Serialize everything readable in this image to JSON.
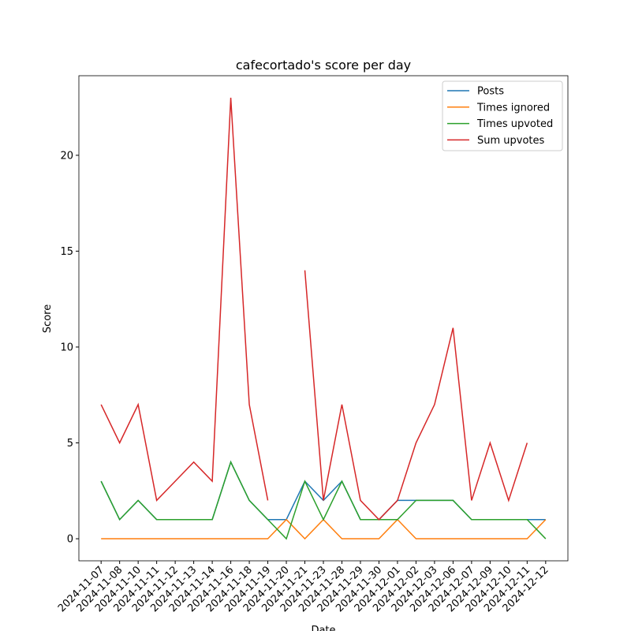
{
  "chart_data": {
    "type": "line",
    "title": "cafecortado's score per day",
    "xlabel": "Date",
    "ylabel": "Score",
    "categories": [
      "2024-11-07",
      "2024-11-08",
      "2024-11-10",
      "2024-11-11",
      "2024-11-12",
      "2024-11-13",
      "2024-11-14",
      "2024-11-16",
      "2024-11-18",
      "2024-11-19",
      "2024-11-20",
      "2024-11-21",
      "2024-11-23",
      "2024-11-28",
      "2024-11-29",
      "2024-11-30",
      "2024-12-01",
      "2024-12-02",
      "2024-12-03",
      "2024-12-06",
      "2024-12-07",
      "2024-12-09",
      "2024-12-10",
      "2024-12-11",
      "2024-12-12"
    ],
    "series": [
      {
        "name": "Posts",
        "color": "#1f77b4",
        "values": [
          3,
          1,
          2,
          1,
          1,
          1,
          1,
          4,
          2,
          1,
          1,
          3,
          2,
          3,
          1,
          1,
          2,
          2,
          2,
          2,
          1,
          1,
          1,
          1,
          1
        ]
      },
      {
        "name": "Times ignored",
        "color": "#ff7f0e",
        "values": [
          0,
          0,
          0,
          0,
          0,
          0,
          0,
          0,
          0,
          0,
          1,
          0,
          1,
          0,
          0,
          0,
          1,
          0,
          0,
          0,
          0,
          0,
          0,
          0,
          1
        ]
      },
      {
        "name": "Times upvoted",
        "color": "#2ca02c",
        "values": [
          3,
          1,
          2,
          1,
          1,
          1,
          1,
          4,
          2,
          1,
          0,
          3,
          1,
          3,
          1,
          1,
          1,
          2,
          2,
          2,
          1,
          1,
          1,
          1,
          0
        ]
      },
      {
        "name": "Sum upvotes",
        "color": "#d62728",
        "values": [
          7,
          5,
          7,
          2,
          3,
          4,
          3,
          23,
          7,
          2,
          null,
          14,
          2,
          7,
          2,
          1,
          2,
          5,
          7,
          11,
          2,
          5,
          2,
          5,
          null
        ]
      }
    ],
    "ylim": [
      -1.15,
      24.15
    ],
    "yticks": [
      0,
      5,
      10,
      15,
      20
    ],
    "legend": "upper right"
  }
}
